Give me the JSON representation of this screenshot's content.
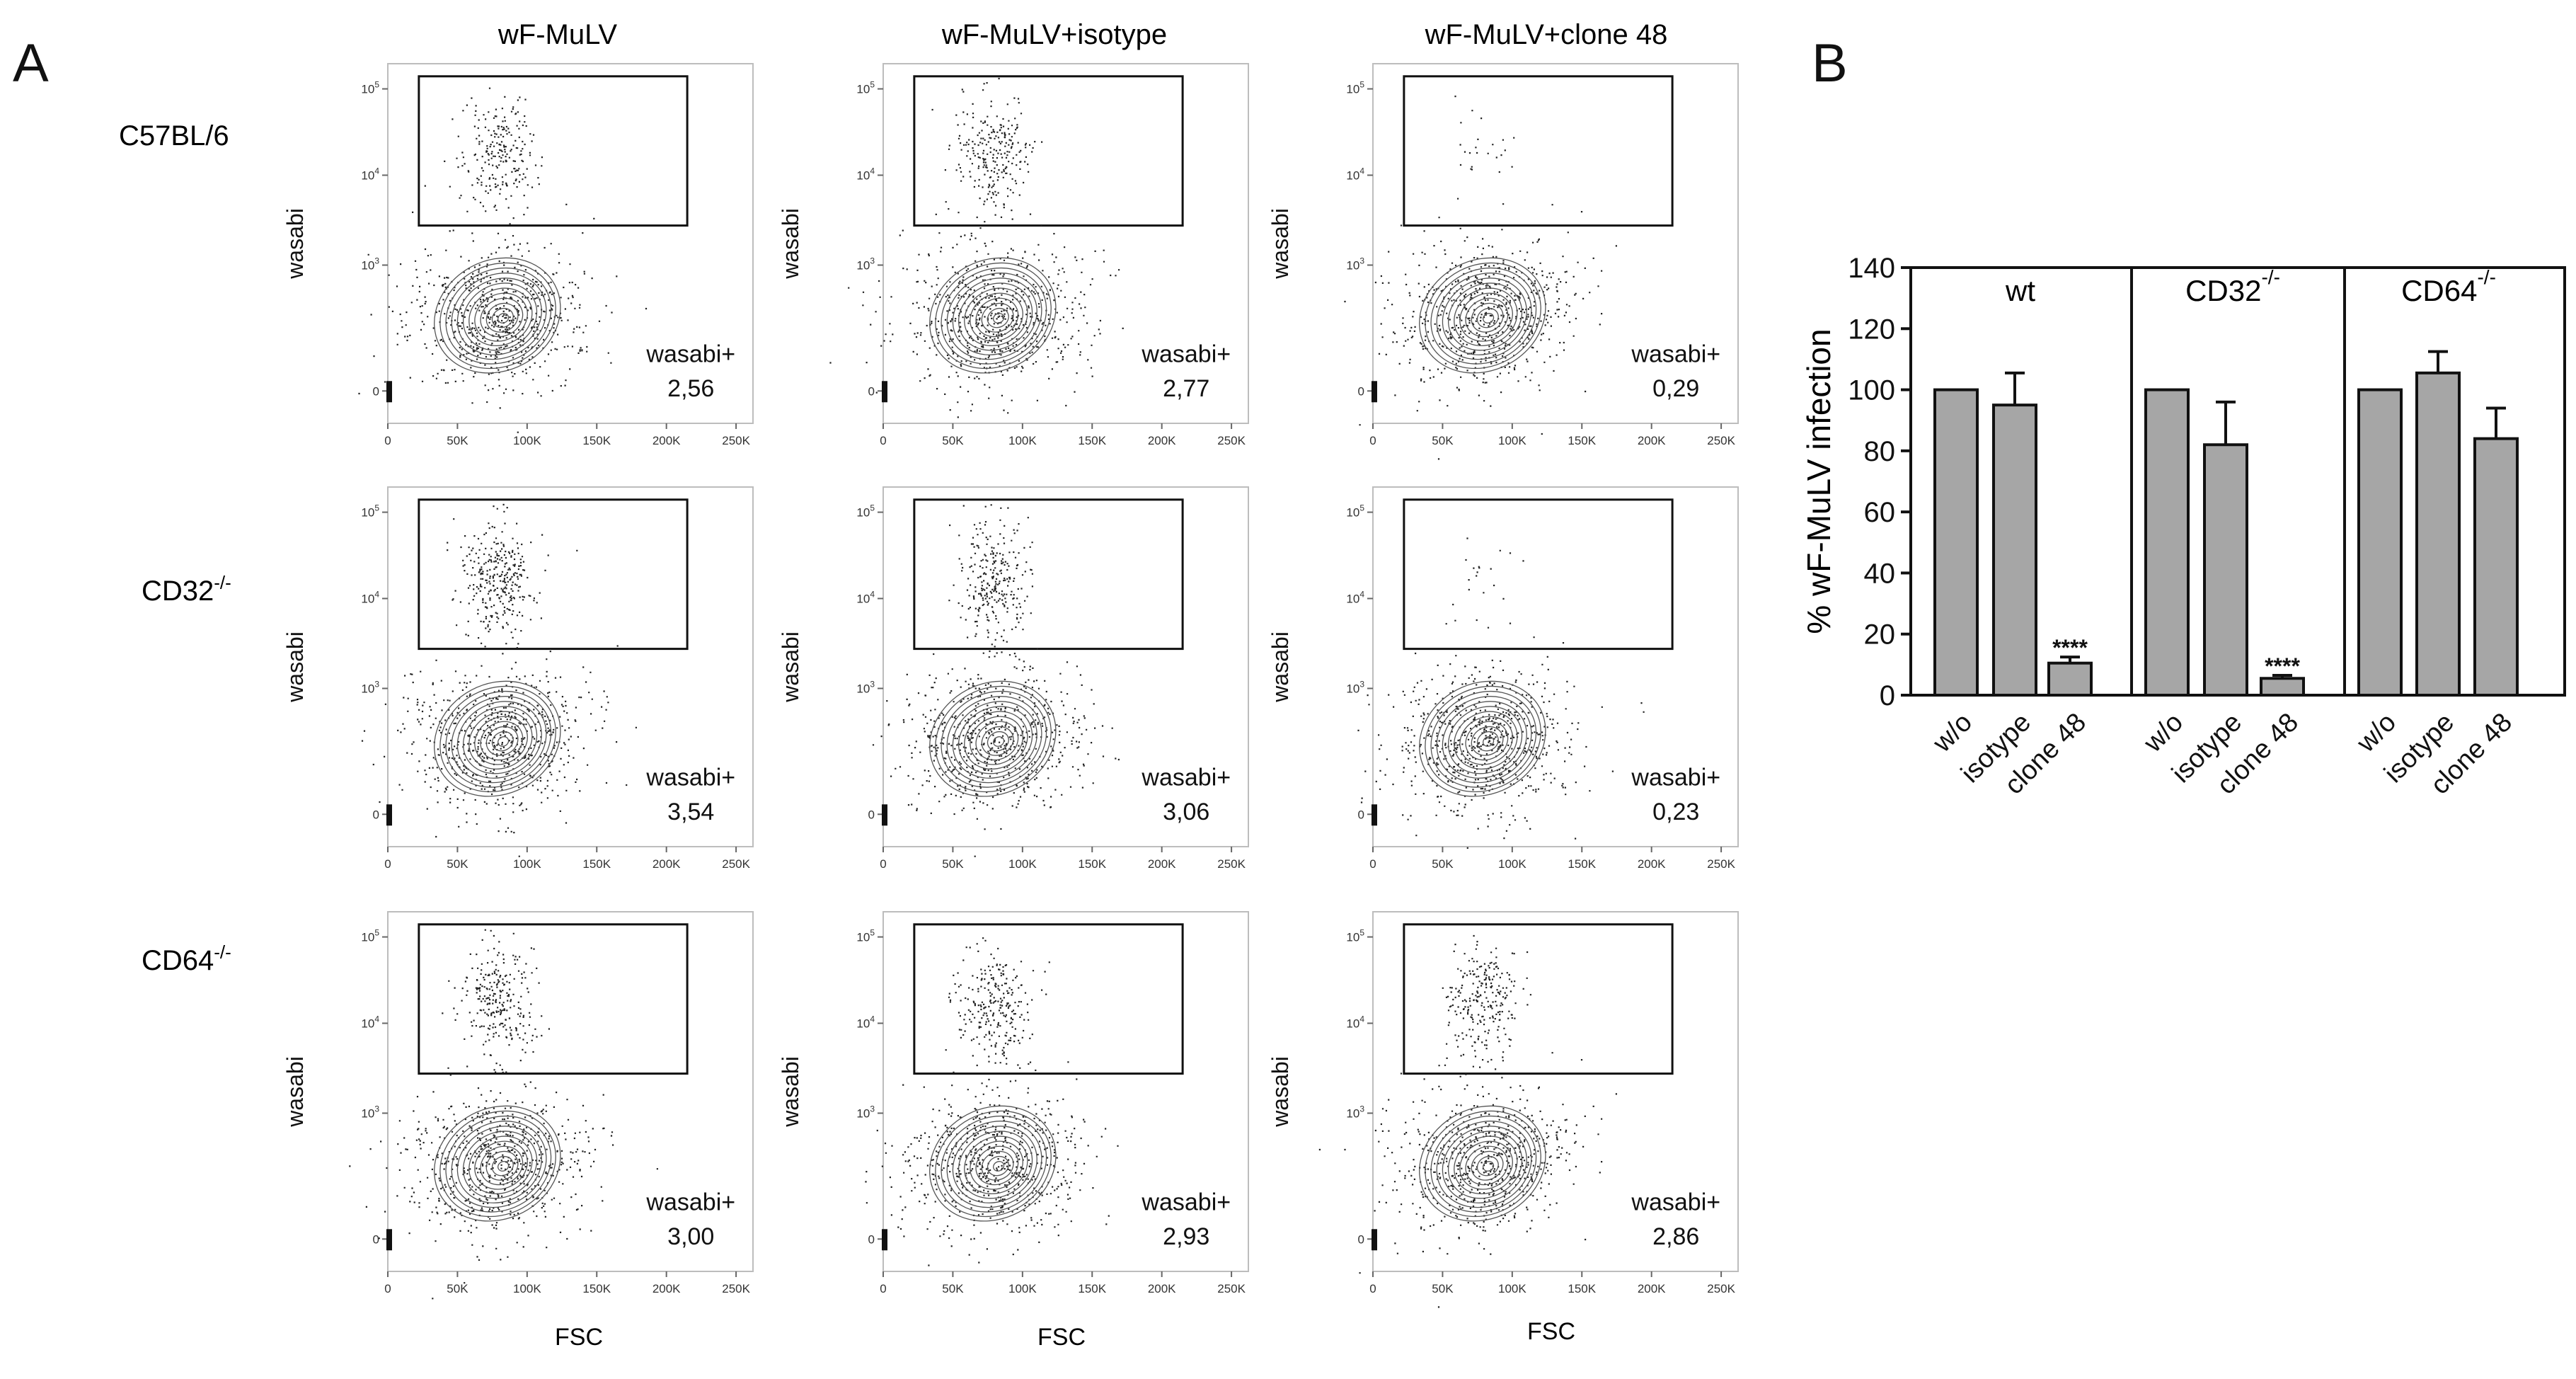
{
  "panel_labels": [
    "A",
    "B"
  ],
  "panel_a": {
    "column_headers": [
      "wF-MuLV",
      "wF-MuLV+isotype",
      "wF-MuLV+clone 48"
    ],
    "row_labels": [
      {
        "main": "C57BL/6",
        "sup": ""
      },
      {
        "main": "CD32",
        "sup": "-/-"
      },
      {
        "main": "CD64",
        "sup": "-/-"
      }
    ],
    "x_axis_label": "FSC",
    "y_axis_label": "wasabi",
    "x_tick_labels": [
      "0",
      "50K",
      "100K",
      "150K",
      "200K",
      "250K"
    ],
    "y_tick_labels": [
      {
        "base": "0",
        "exp": ""
      },
      {
        "base": "10",
        "exp": "3"
      },
      {
        "base": "10",
        "exp": "4"
      },
      {
        "base": "10",
        "exp": "5"
      }
    ],
    "gate_label": "wasabi+",
    "gate_values": [
      [
        "2,56",
        "2,77",
        "0,29"
      ],
      [
        "3,54",
        "3,06",
        "0,23"
      ],
      [
        "3,00",
        "2,93",
        "2,86"
      ]
    ]
  },
  "chart_data": [
    {
      "type": "flow_cytometry_grid",
      "xlabel": "FSC",
      "ylabel": "wasabi",
      "xlim": [
        0,
        262144
      ],
      "x_ticks": [
        0,
        50000,
        100000,
        150000,
        200000,
        250000
      ],
      "y_scale": "biexponential",
      "y_ticks": [
        "0",
        "10^3",
        "10^4",
        "10^5"
      ],
      "columns": [
        "wF-MuLV",
        "wF-MuLV+isotype",
        "wF-MuLV+clone 48"
      ],
      "rows": [
        "C57BL/6",
        "CD32-/-",
        "CD64-/-"
      ],
      "gate": "wasabi+",
      "values": [
        [
          2.56,
          2.77,
          0.29
        ],
        [
          3.54,
          3.06,
          0.23
        ],
        [
          3.0,
          2.93,
          2.86
        ]
      ]
    },
    {
      "type": "bar",
      "ylabel": "% wF-MuLV infection",
      "ylim": [
        0,
        140
      ],
      "y_ticks": [
        0,
        20,
        40,
        60,
        80,
        100,
        120,
        140
      ],
      "grid": false,
      "bar_color": "#a6a6a6",
      "groups": [
        {
          "name": "wt",
          "sup": "",
          "categories": [
            "w/o",
            "isotype",
            "clone 48"
          ],
          "values": [
            100,
            95,
            10.5
          ],
          "errors": [
            0,
            10.5,
            2
          ],
          "significance": [
            "",
            "",
            "****"
          ]
        },
        {
          "name": "CD32",
          "sup": "-/-",
          "categories": [
            "w/o",
            "isotype",
            "clone 48"
          ],
          "values": [
            100,
            82,
            5.5
          ],
          "errors": [
            0,
            14,
            1
          ],
          "significance": [
            "",
            "",
            "****"
          ]
        },
        {
          "name": "CD64",
          "sup": "-/-",
          "categories": [
            "w/o",
            "isotype",
            "clone 48"
          ],
          "values": [
            100,
            105.5,
            84
          ],
          "errors": [
            0,
            7,
            10
          ],
          "significance": [
            "",
            "",
            ""
          ]
        }
      ]
    }
  ]
}
